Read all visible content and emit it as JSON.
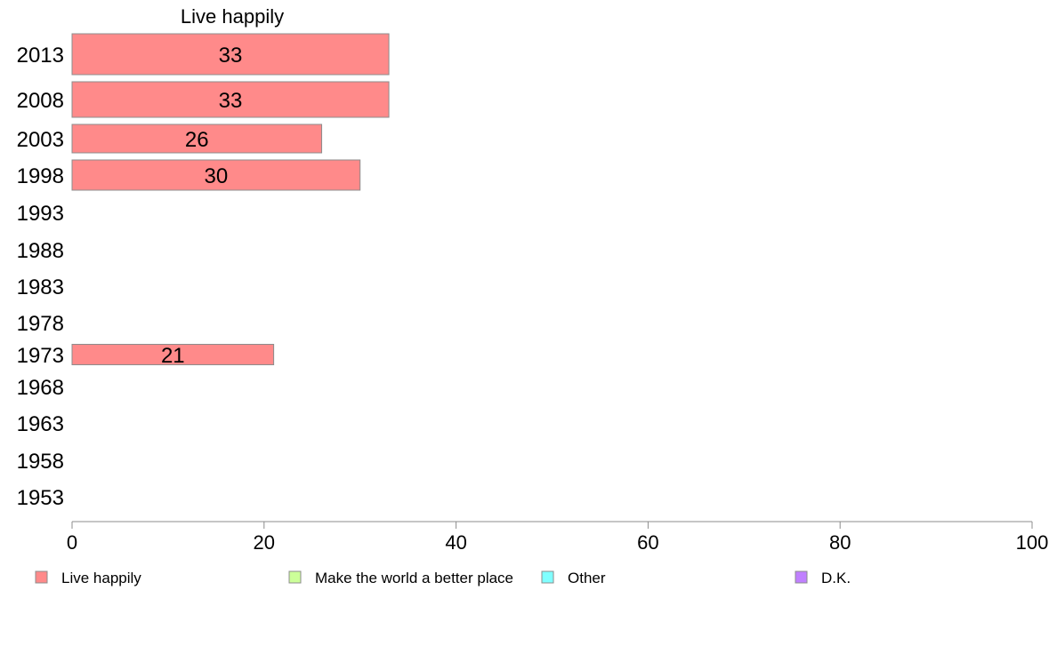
{
  "chart_data": {
    "type": "bar",
    "orientation": "horizontal",
    "title": "Live happily",
    "categories": [
      "2013",
      "2008",
      "2003",
      "1998",
      "1993",
      "1988",
      "1983",
      "1978",
      "1973",
      "1968",
      "1963",
      "1958",
      "1953"
    ],
    "series": [
      {
        "name": "Live happily",
        "values": [
          33,
          33,
          26,
          30,
          null,
          null,
          null,
          null,
          21,
          null,
          null,
          null,
          null
        ],
        "color": "#ff8a8a"
      }
    ],
    "data_labels": [
      "33",
      "33",
      "26",
      "30",
      "",
      "",
      "",
      "",
      "21",
      "",
      "",
      "",
      ""
    ],
    "xlim": [
      0,
      100
    ],
    "xticks": [
      0,
      20,
      40,
      60,
      80,
      100
    ],
    "legend": {
      "placement": "bottom",
      "items": [
        {
          "label": "Live happily",
          "color": "#ff8a8a"
        },
        {
          "label": "Make the world a better place",
          "color": "#ccff99"
        },
        {
          "label": "Other",
          "color": "#80ffff"
        },
        {
          "label": "D.K.",
          "color": "#c080ff"
        }
      ]
    },
    "grid": false
  }
}
